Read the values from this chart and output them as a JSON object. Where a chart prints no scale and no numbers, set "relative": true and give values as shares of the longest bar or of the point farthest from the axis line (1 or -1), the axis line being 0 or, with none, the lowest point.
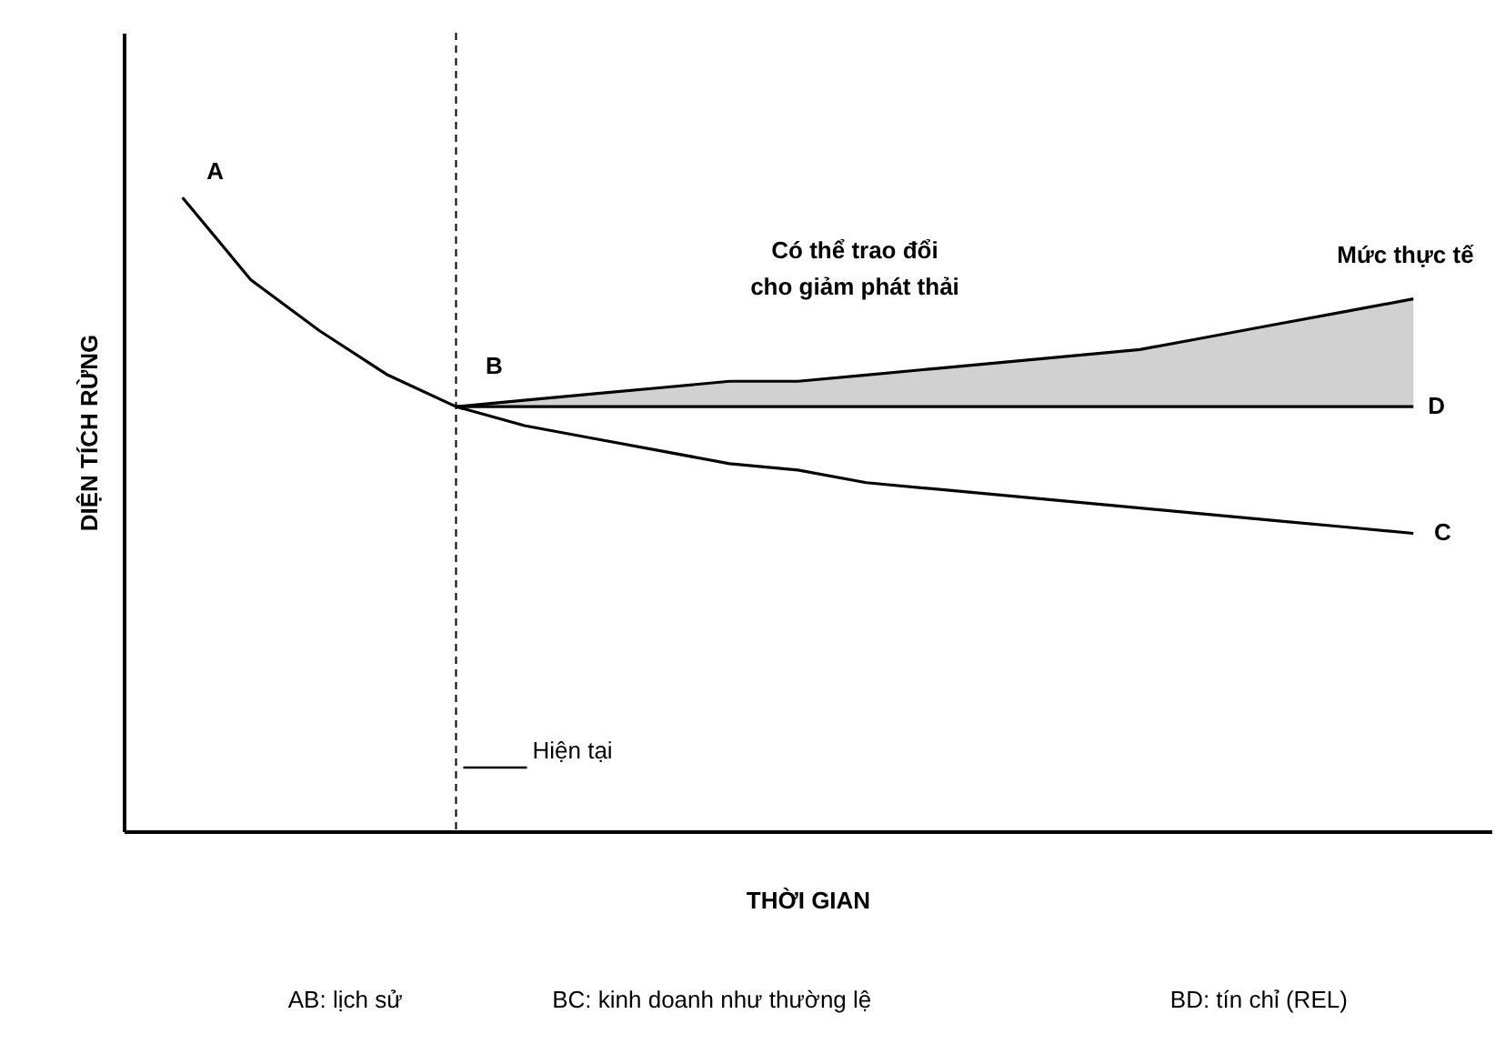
{
  "chart_data": {
    "type": "line",
    "relative": true,
    "xlabel": "THỜI GIAN",
    "ylabel": "DIỆN TÍCH RỪNG",
    "categories": [
      null,
      null,
      null,
      null,
      null,
      null,
      null,
      null,
      null,
      null,
      null,
      null,
      null,
      null,
      null,
      null,
      null,
      null,
      null
    ],
    "series": [
      {
        "color": "#000000",
        "values": [
          1.0,
          0.87,
          0.79,
          0.72,
          0.67,
          0.64,
          0.62,
          0.6,
          0.58,
          0.57,
          0.55,
          0.54,
          0.53,
          0.52,
          0.51,
          0.5,
          0.49,
          0.48,
          0.47
        ]
      },
      {
        "name": "D",
        "color": "#000000",
        "values": [
          null,
          null,
          null,
          null,
          0.67,
          0.67,
          0.67,
          0.67,
          0.67,
          0.67,
          0.67,
          0.67,
          0.67,
          0.67,
          0.67,
          0.67,
          0.67,
          0.67,
          0.67
        ]
      },
      {
        "name": "Mức thực tế",
        "color": "#000000",
        "values": [
          null,
          null,
          null,
          null,
          0.67,
          0.68,
          0.69,
          0.7,
          0.71,
          0.71,
          0.72,
          0.73,
          0.74,
          0.75,
          0.76,
          0.78,
          0.8,
          0.82,
          0.84
        ],
        "lower": [
          null,
          null,
          null,
          null,
          0.67,
          0.67,
          0.67,
          0.67,
          0.67,
          0.67,
          0.67,
          0.67,
          0.67,
          0.67,
          0.67,
          0.67,
          0.67,
          0.67,
          0.67
        ],
        "upper": [
          null,
          null,
          null,
          null,
          0.67,
          0.68,
          0.69,
          0.7,
          0.71,
          0.71,
          0.72,
          0.73,
          0.74,
          0.75,
          0.76,
          0.78,
          0.8,
          0.82,
          0.84
        ]
      }
    ],
    "annotations": [
      "A",
      "B",
      "C",
      "Hiện tại",
      "Có thể trao đổi cho giảm phát thải",
      "AB: lịch sử",
      "BC: kinh doanh như thường lệ",
      "BD: tín chỉ (REL)"
    ]
  }
}
